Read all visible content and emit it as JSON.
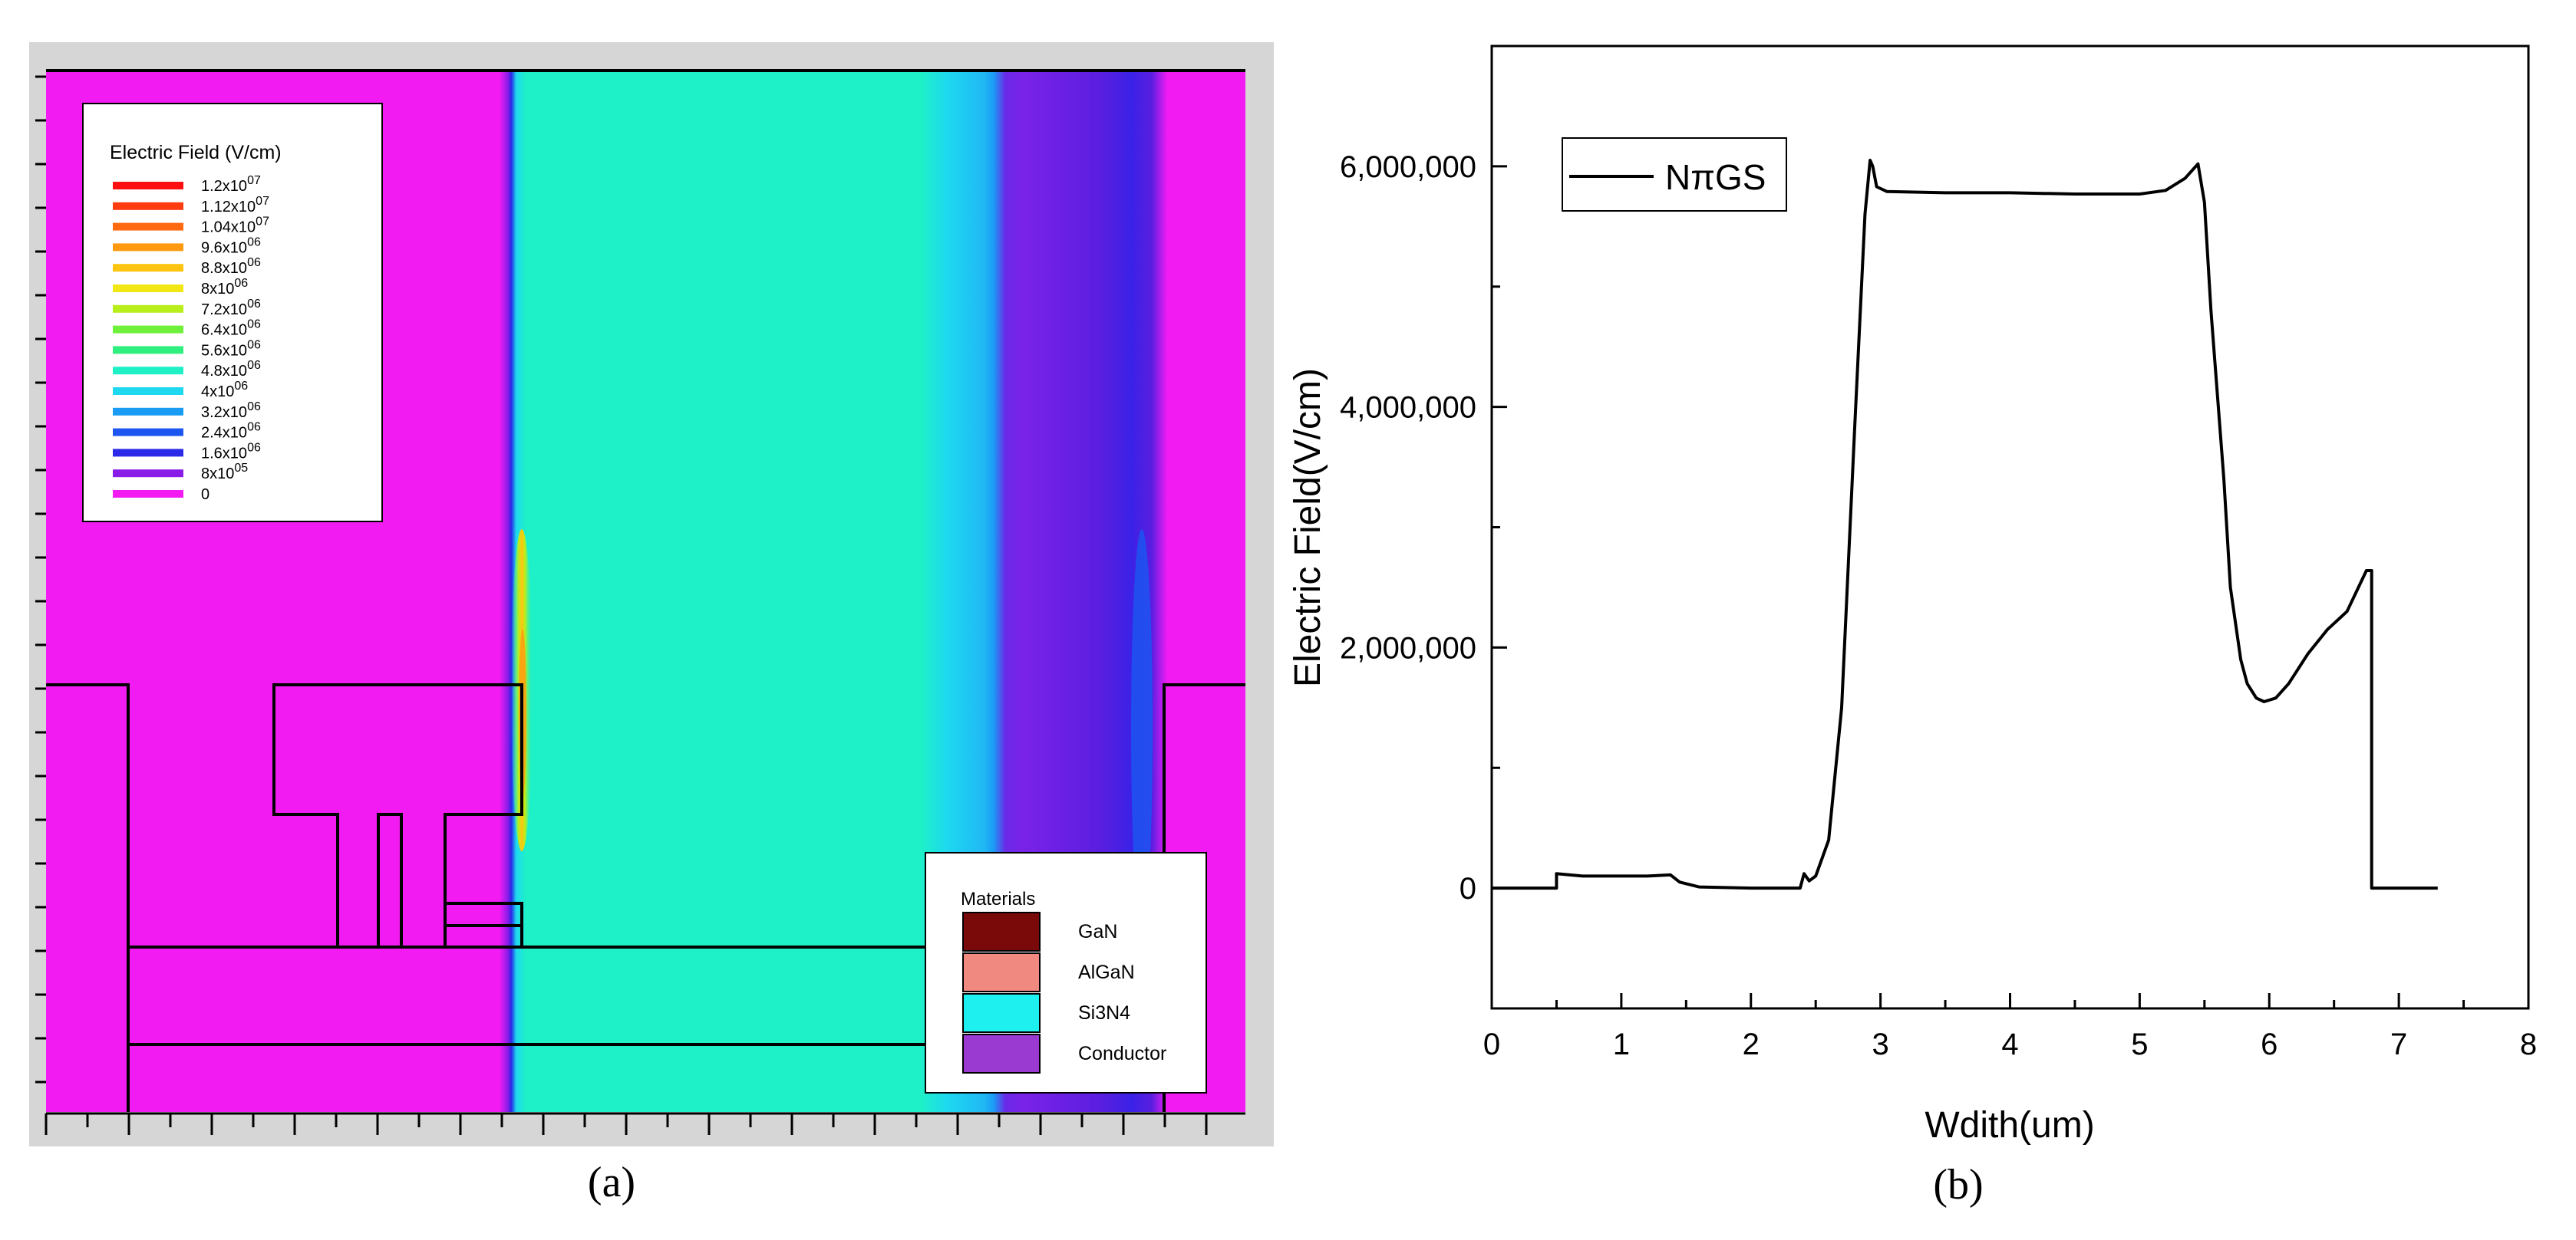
{
  "panel_a": {
    "caption": "(a)",
    "legend": {
      "title": "Electric Field (V/cm)",
      "levels": [
        {
          "label": "1.2x10^07",
          "color": "#ff1010"
        },
        {
          "label": "1.12x10^07",
          "color": "#ff3b10"
        },
        {
          "label": "1.04x10^07",
          "color": "#ff6a10"
        },
        {
          "label": "9.6x10^06",
          "color": "#ff9a10"
        },
        {
          "label": "8.8x10^06",
          "color": "#ffc410"
        },
        {
          "label": "8x10^06",
          "color": "#f2e614"
        },
        {
          "label": "7.2x10^06",
          "color": "#b8ef1a"
        },
        {
          "label": "6.4x10^06",
          "color": "#6ff03a"
        },
        {
          "label": "5.6x10^06",
          "color": "#2ff07e"
        },
        {
          "label": "4.8x10^06",
          "color": "#20f0c6"
        },
        {
          "label": "4x10^06",
          "color": "#1ed8f0"
        },
        {
          "label": "3.2x10^06",
          "color": "#1a9cf5"
        },
        {
          "label": "2.4x10^06",
          "color": "#1c55f0"
        },
        {
          "label": "1.6x10^06",
          "color": "#2a2ae8"
        },
        {
          "label": "8x10^05",
          "color": "#8a1ce8"
        },
        {
          "label": "0",
          "color": "#f21cf2"
        }
      ]
    },
    "materials": {
      "title": "Materials",
      "items": [
        {
          "label": "GaN",
          "color": "#7a0a0a"
        },
        {
          "label": "AlGaN",
          "color": "#f08a80"
        },
        {
          "label": "Si3N4",
          "color": "#1ef0f0"
        },
        {
          "label": "Conductor",
          "color": "#9a3ad0"
        }
      ]
    }
  },
  "panel_b": {
    "caption": "(b)",
    "chart_data": {
      "type": "line",
      "title": "",
      "xlabel": "Wdith(um)",
      "ylabel": "Electric Field(V/cm)",
      "xlim": [
        0,
        8
      ],
      "ylim": [
        -1000000,
        7000000
      ],
      "xticks": [
        0,
        1,
        2,
        3,
        4,
        5,
        6,
        7,
        8
      ],
      "yticks": [
        0,
        2000000,
        4000000,
        6000000
      ],
      "ytick_labels": [
        "0",
        "2,000,000",
        "4,000,000",
        "6,000,000"
      ],
      "legend_position": "top-left",
      "grid": false,
      "series": [
        {
          "name": "NπGS",
          "color": "#000000",
          "x": [
            0,
            0.5,
            0.5,
            0.7,
            1.0,
            1.2,
            1.38,
            1.45,
            1.6,
            2.0,
            2.38,
            2.41,
            2.45,
            2.5,
            2.6,
            2.7,
            2.8,
            2.88,
            2.92,
            2.94,
            2.97,
            3.05,
            3.5,
            4.0,
            4.5,
            5.0,
            5.2,
            5.35,
            5.45,
            5.5,
            5.55,
            5.65,
            5.7,
            5.78,
            5.83,
            5.9,
            5.96,
            6.05,
            6.15,
            6.3,
            6.45,
            6.6,
            6.75,
            6.79,
            6.79,
            7.0,
            7.3
          ],
          "values": [
            0,
            0,
            120000,
            100000,
            100000,
            100000,
            110000,
            50000,
            10000,
            0,
            0,
            120000,
            60000,
            100000,
            400000,
            1500000,
            3800000,
            5600000,
            6050000,
            6000000,
            5830000,
            5790000,
            5780000,
            5780000,
            5770000,
            5770000,
            5800000,
            5900000,
            6020000,
            5700000,
            4800000,
            3400000,
            2500000,
            1900000,
            1700000,
            1580000,
            1550000,
            1580000,
            1700000,
            1950000,
            2150000,
            2300000,
            2640000,
            2640000,
            0,
            0,
            0
          ]
        }
      ]
    }
  }
}
